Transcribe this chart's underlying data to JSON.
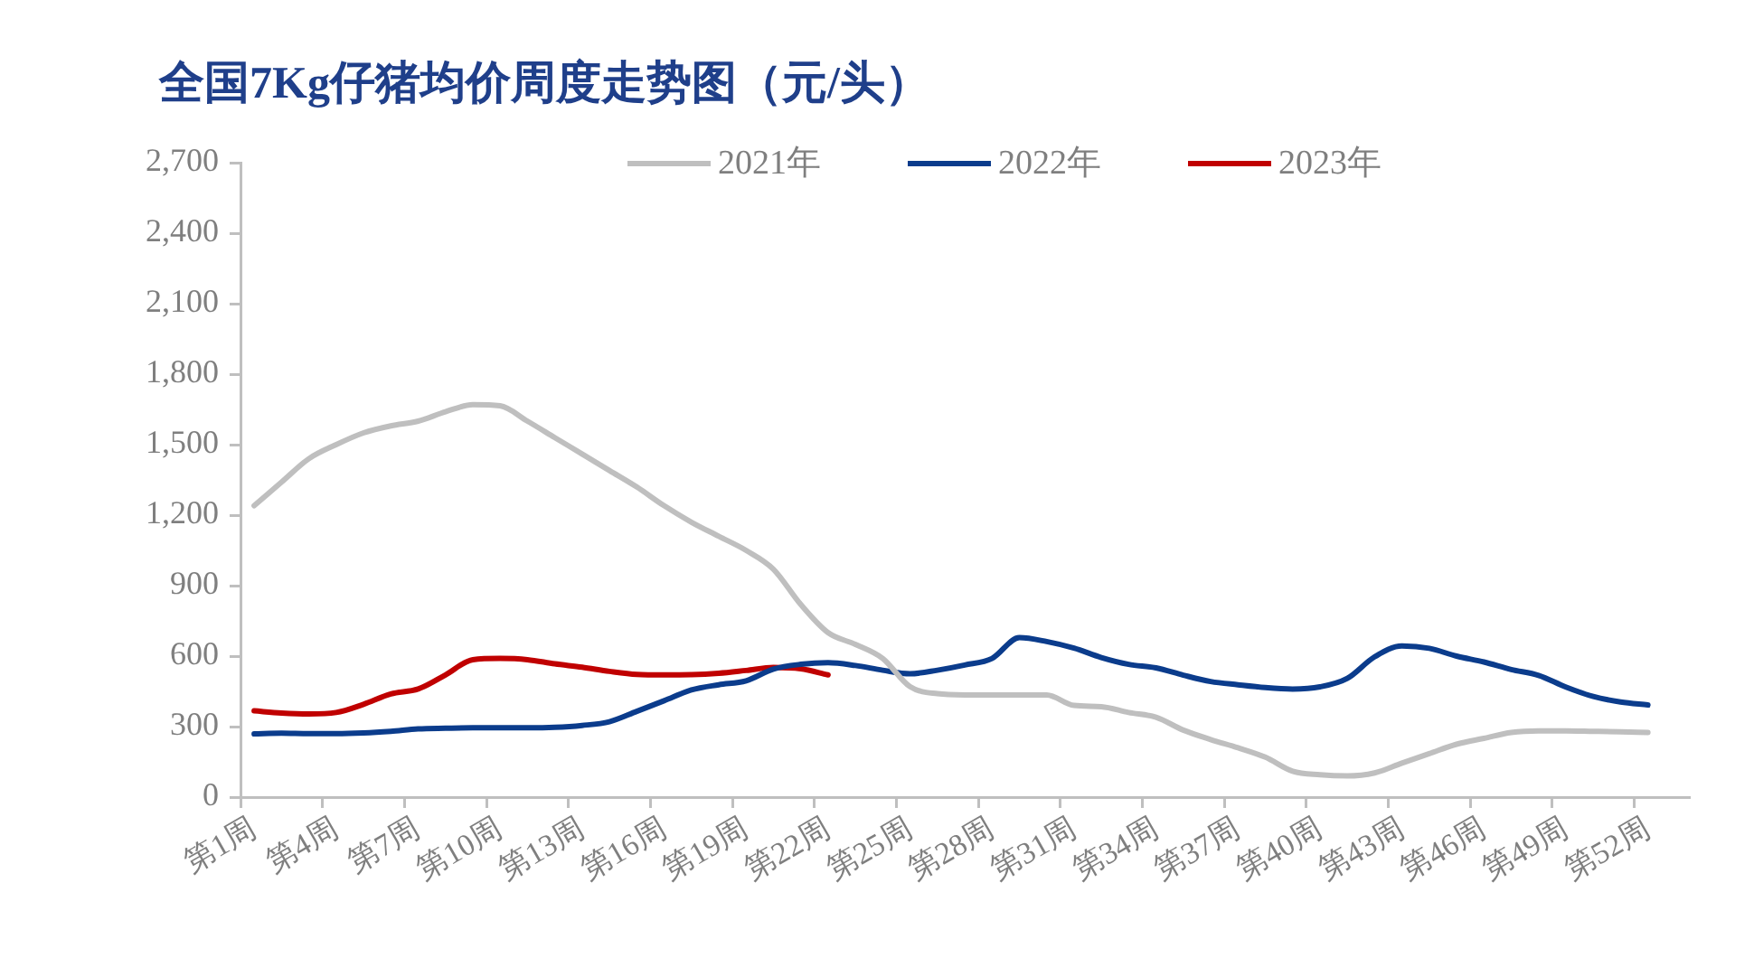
{
  "chart_data": {
    "type": "line",
    "title": "全国7Kg仔猪均价周度走势图（元/头）",
    "categories": [
      "第1周",
      null,
      null,
      "第4周",
      null,
      null,
      "第7周",
      null,
      null,
      "第10周",
      null,
      null,
      "第13周",
      null,
      null,
      "第16周",
      null,
      null,
      "第19周",
      null,
      null,
      "第22周",
      null,
      null,
      "第25周",
      null,
      null,
      "第28周",
      null,
      null,
      "第31周",
      null,
      null,
      "第34周",
      null,
      null,
      "第37周",
      null,
      null,
      "第40周",
      null,
      null,
      "第43周",
      null,
      null,
      "第46周",
      null,
      null,
      "第49周",
      null,
      null,
      "第52周",
      null
    ],
    "series": [
      {
        "name": "2021年",
        "color": "#bfbfbf",
        "values": [
          1240,
          1340,
          1440,
          1500,
          1550,
          1580,
          1600,
          1640,
          1670,
          1665,
          1600,
          1530,
          1460,
          1390,
          1320,
          1240,
          1170,
          1110,
          1050,
          970,
          820,
          700,
          650,
          590,
          470,
          440,
          435,
          435,
          435,
          435,
          390,
          385,
          360,
          340,
          285,
          245,
          210,
          170,
          110,
          95,
          90,
          103,
          145,
          185,
          225,
          250,
          275,
          282,
          282,
          280,
          278,
          275,
          null
        ]
      },
      {
        "name": "2022年",
        "color": "#0b3c8c",
        "values": [
          269,
          272,
          270,
          270,
          273,
          280,
          290,
          293,
          295,
          295,
          295,
          297,
          305,
          321,
          365,
          410,
          456,
          478,
          495,
          545,
          565,
          572,
          560,
          540,
          525,
          540,
          562,
          590,
          679,
          662,
          634,
          594,
          565,
          550,
          519,
          492,
          478,
          466,
          460,
          469,
          505,
          597,
          643,
          633,
          600,
          575,
          543,
          518,
          468,
          428,
          405,
          392,
          null
        ]
      },
      {
        "name": "2023年",
        "color": "#c00000",
        "values": [
          367,
          358,
          354,
          360,
          395,
          439,
          460,
          520,
          585,
          590,
          585,
          567,
          553,
          535,
          522,
          520,
          521,
          527,
          539,
          552,
          546,
          520,
          null,
          null,
          null,
          null,
          null,
          null,
          null,
          null,
          null,
          null,
          null,
          null,
          null,
          null,
          null,
          null,
          null,
          null,
          null,
          null,
          null,
          null,
          null,
          null,
          null,
          null,
          null,
          null,
          null,
          null,
          null
        ]
      }
    ],
    "ylim": [
      0,
      2700
    ],
    "yticks": [
      0,
      300,
      600,
      900,
      {
        "value": 1200,
        "label": "1,200"
      },
      {
        "value": 1500,
        "label": "1,500"
      },
      {
        "value": 1800,
        "label": "1,800"
      },
      {
        "value": 2100,
        "label": "2,100"
      },
      {
        "value": 2400,
        "label": "2,400"
      },
      {
        "value": 2700,
        "label": "2,700"
      }
    ],
    "grid": false,
    "legend": "top",
    "marker": "none",
    "line_style": "solid"
  }
}
